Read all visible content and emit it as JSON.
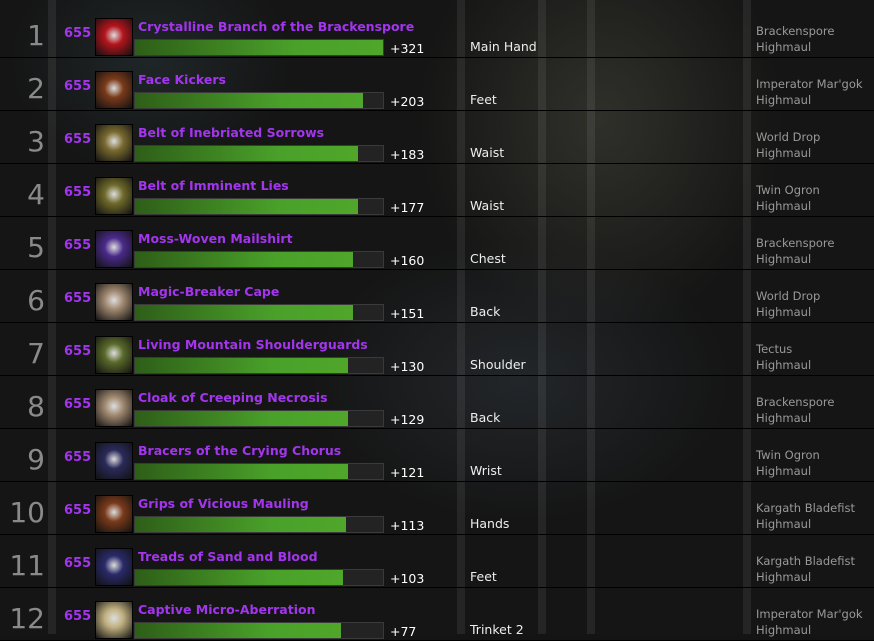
{
  "colors": {
    "epic": "#a335ee",
    "bar": "#4aa12a"
  },
  "rows": [
    {
      "rank": "1",
      "ilvl": "655",
      "name": "Crystalline Branch of the Brackenspore",
      "gain": "+321",
      "fill_pct": 100,
      "slot": "Main Hand",
      "boss": "Brackenspore",
      "raid": "Highmaul",
      "icon": "weapon-icon",
      "icon_color": "#b3141c"
    },
    {
      "rank": "2",
      "ilvl": "655",
      "name": "Face Kickers",
      "gain": "+203",
      "fill_pct": 92,
      "slot": "Feet",
      "boss": "Imperator Mar'gok",
      "raid": "Highmaul",
      "icon": "boots-icon",
      "icon_color": "#7a3a1a"
    },
    {
      "rank": "3",
      "ilvl": "655",
      "name": "Belt of Inebriated Sorrows",
      "gain": "+183",
      "fill_pct": 90,
      "slot": "Waist",
      "boss": "World Drop",
      "raid": "Highmaul",
      "icon": "belt-icon",
      "icon_color": "#7a6a30"
    },
    {
      "rank": "4",
      "ilvl": "655",
      "name": "Belt of Imminent Lies",
      "gain": "+177",
      "fill_pct": 90,
      "slot": "Waist",
      "boss": "Twin Ogron",
      "raid": "Highmaul",
      "icon": "belt-icon",
      "icon_color": "#6f6a2a"
    },
    {
      "rank": "5",
      "ilvl": "655",
      "name": "Moss-Woven Mailshirt",
      "gain": "+160",
      "fill_pct": 88,
      "slot": "Chest",
      "boss": "Brackenspore",
      "raid": "Highmaul",
      "icon": "chest-armor-icon",
      "icon_color": "#4a2a8a"
    },
    {
      "rank": "6",
      "ilvl": "655",
      "name": "Magic-Breaker Cape",
      "gain": "+151",
      "fill_pct": 88,
      "slot": "Back",
      "boss": "World Drop",
      "raid": "Highmaul",
      "icon": "cloak-icon",
      "icon_color": "#a08870"
    },
    {
      "rank": "7",
      "ilvl": "655",
      "name": "Living Mountain Shoulderguards",
      "gain": "+130",
      "fill_pct": 86,
      "slot": "Shoulder",
      "boss": "Tectus",
      "raid": "Highmaul",
      "icon": "shoulder-icon",
      "icon_color": "#5a6a2a"
    },
    {
      "rank": "8",
      "ilvl": "655",
      "name": "Cloak of Creeping Necrosis",
      "gain": "+129",
      "fill_pct": 86,
      "slot": "Back",
      "boss": "Brackenspore",
      "raid": "Highmaul",
      "icon": "cloak-icon",
      "icon_color": "#a08870"
    },
    {
      "rank": "9",
      "ilvl": "655",
      "name": "Bracers of the Crying Chorus",
      "gain": "+121",
      "fill_pct": 86,
      "slot": "Wrist",
      "boss": "Twin Ogron",
      "raid": "Highmaul",
      "icon": "bracers-icon",
      "icon_color": "#2a2a5a"
    },
    {
      "rank": "10",
      "ilvl": "655",
      "name": "Grips of Vicious Mauling",
      "gain": "+113",
      "fill_pct": 85,
      "slot": "Hands",
      "boss": "Kargath Bladefist",
      "raid": "Highmaul",
      "icon": "gloves-icon",
      "icon_color": "#7a3a1a"
    },
    {
      "rank": "11",
      "ilvl": "655",
      "name": "Treads of Sand and Blood",
      "gain": "+103",
      "fill_pct": 84,
      "slot": "Feet",
      "boss": "Kargath Bladefist",
      "raid": "Highmaul",
      "icon": "boots-icon",
      "icon_color": "#2a2a6a"
    },
    {
      "rank": "12",
      "ilvl": "655",
      "name": "Captive Micro-Aberration",
      "gain": "+77",
      "fill_pct": 83,
      "slot": "Trinket 2",
      "boss": "Imperator Mar'gok",
      "raid": "Highmaul",
      "icon": "trinket-icon",
      "icon_color": "#c0b080"
    }
  ]
}
